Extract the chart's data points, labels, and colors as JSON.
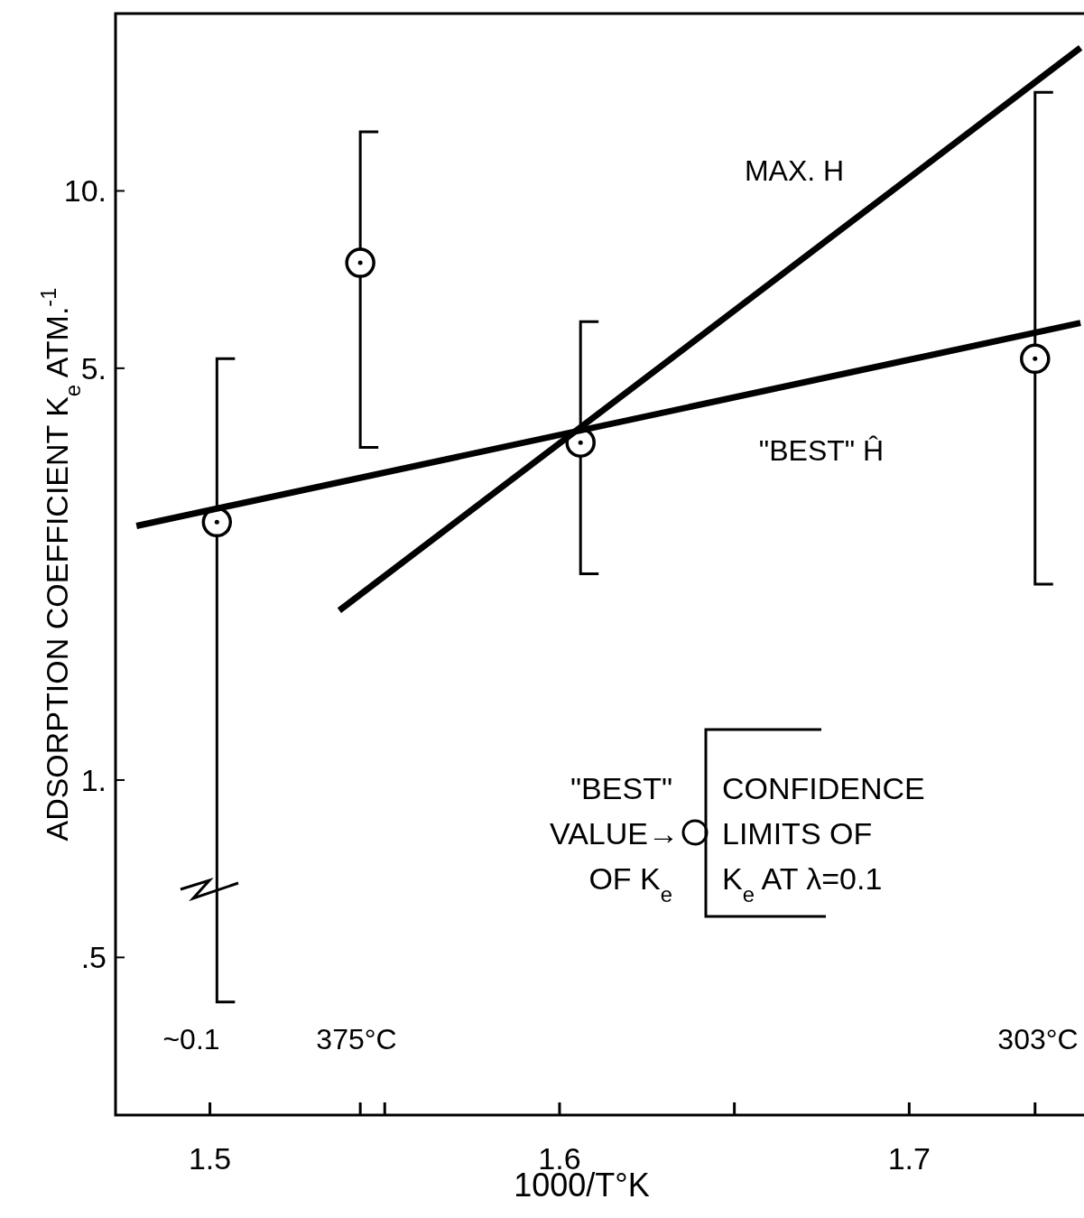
{
  "chart_data": {
    "type": "scatter",
    "xlabel": "1000/T°K",
    "ylabel": "ADSORPTION COEFFICIENT K$_{e}$ ATM.$^{-1}$",
    "log": "y",
    "xlim": [
      1.473,
      1.75
    ],
    "ylim": [
      0.27,
      20
    ],
    "xticks": [
      1.5,
      {
        "value": 1.543,
        "label": null
      },
      {
        "value": 1.55,
        "label": null
      },
      1.6,
      {
        "value": 1.65,
        "label": null
      },
      1.7,
      {
        "value": 1.736,
        "label": null
      }
    ],
    "yticks": [
      {
        "value": 0.5,
        "label": ".5"
      },
      {
        "value": 1,
        "label": "1."
      },
      {
        "value": 5,
        "label": "5."
      },
      {
        "value": 10,
        "label": "10."
      }
    ],
    "series": [
      {
        "marker": "circle",
        "color": "#000000",
        "x": [
          1.502,
          1.543,
          1.606,
          1.736
        ],
        "values": [
          2.74,
          7.55,
          3.74,
          5.19
        ],
        "errors": [
          [
            0.42,
            5.19
          ],
          [
            3.67,
            12.6
          ],
          [
            2.24,
            6.0
          ],
          [
            2.15,
            14.7
          ]
        ]
      },
      {
        "type": "line",
        "color": "#000000",
        "x": [
          1.479,
          1.749
        ],
        "values": [
          2.7,
          5.97
        ]
      },
      {
        "type": "line",
        "color": "#000000",
        "x": [
          1.537,
          1.749
        ],
        "values": [
          1.94,
          17.5
        ]
      }
    ],
    "annotations": [
      "MAX. H",
      "\"BEST\" Ĥ",
      "~0.1",
      "375°C",
      "303°C",
      "\"BEST\"",
      "VALUE→",
      "OF K$_{e}$",
      "CONFIDENCE",
      "LIMITS OF",
      "K$_{e}$ AT  λ=0.1"
    ]
  }
}
